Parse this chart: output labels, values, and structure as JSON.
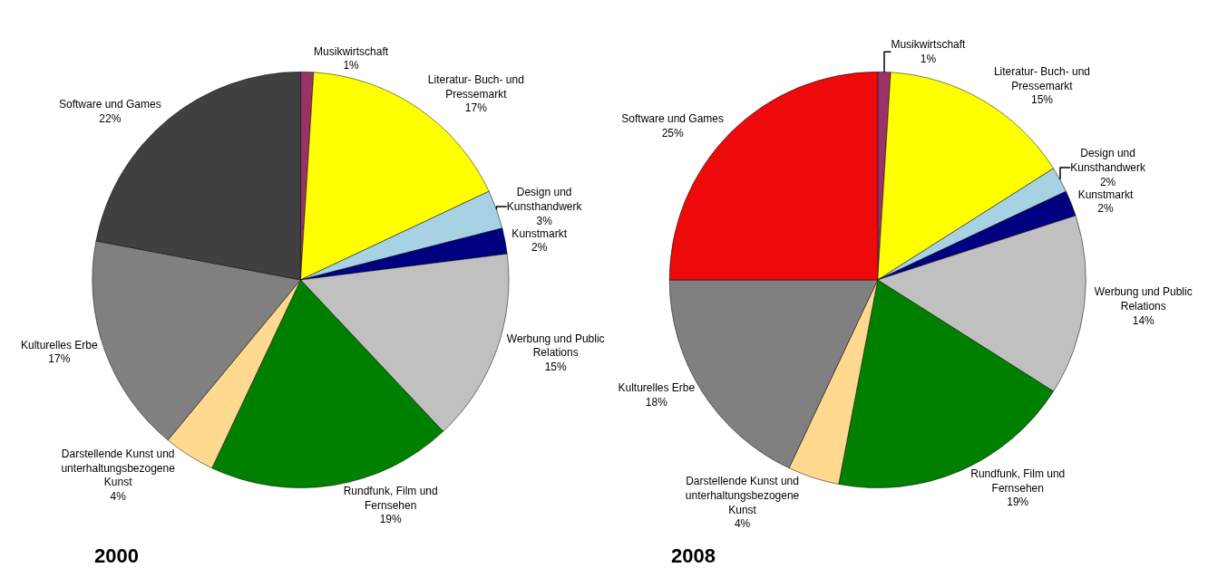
{
  "chart_data": [
    {
      "type": "pie",
      "title": "2000",
      "categories": [
        "Musikwirtschaft",
        "Literatur- Buch- und Pressemarkt",
        "Design und Kunsthandwerk",
        "Kunstmarkt",
        "Werbung und Public Relations",
        "Rundfunk, Film und Fernsehen",
        "Darstellende Kunst und unterhaltungsbezogene Kunst",
        "Kulturelles Erbe",
        "Software und Games"
      ],
      "values": [
        1,
        17,
        3,
        2,
        15,
        19,
        4,
        17,
        22
      ],
      "value_labels": [
        "1%",
        "17%",
        "3%",
        "2%",
        "15%",
        "19%",
        "4%",
        "17%",
        "22%"
      ],
      "colors": [
        "#993366",
        "#ffff00",
        "#a6d2e4",
        "#000080",
        "#c0c0c0",
        "#008000",
        "#ffd98f",
        "#808080",
        "#404040"
      ]
    },
    {
      "type": "pie",
      "title": "2008",
      "categories": [
        "Musikwirtschaft",
        "Literatur- Buch- und Pressemarkt",
        "Design und Kunsthandwerk",
        "Kunstmarkt",
        "Werbung und Public Relations",
        "Rundfunk, Film und Fernsehen",
        "Darstellende Kunst und unterhaltungsbezogene Kunst",
        "Kulturelles Erbe",
        "Software und Games"
      ],
      "values": [
        1,
        15,
        2,
        2,
        14,
        19,
        4,
        18,
        25
      ],
      "value_labels": [
        "1%",
        "15%",
        "2%",
        "2%",
        "14%",
        "19%",
        "4%",
        "18%",
        "25%"
      ],
      "colors": [
        "#993366",
        "#ffff00",
        "#a6d2e4",
        "#000080",
        "#c0c0c0",
        "#008000",
        "#ffd98f",
        "#808080",
        "#ee0a0a"
      ]
    }
  ]
}
